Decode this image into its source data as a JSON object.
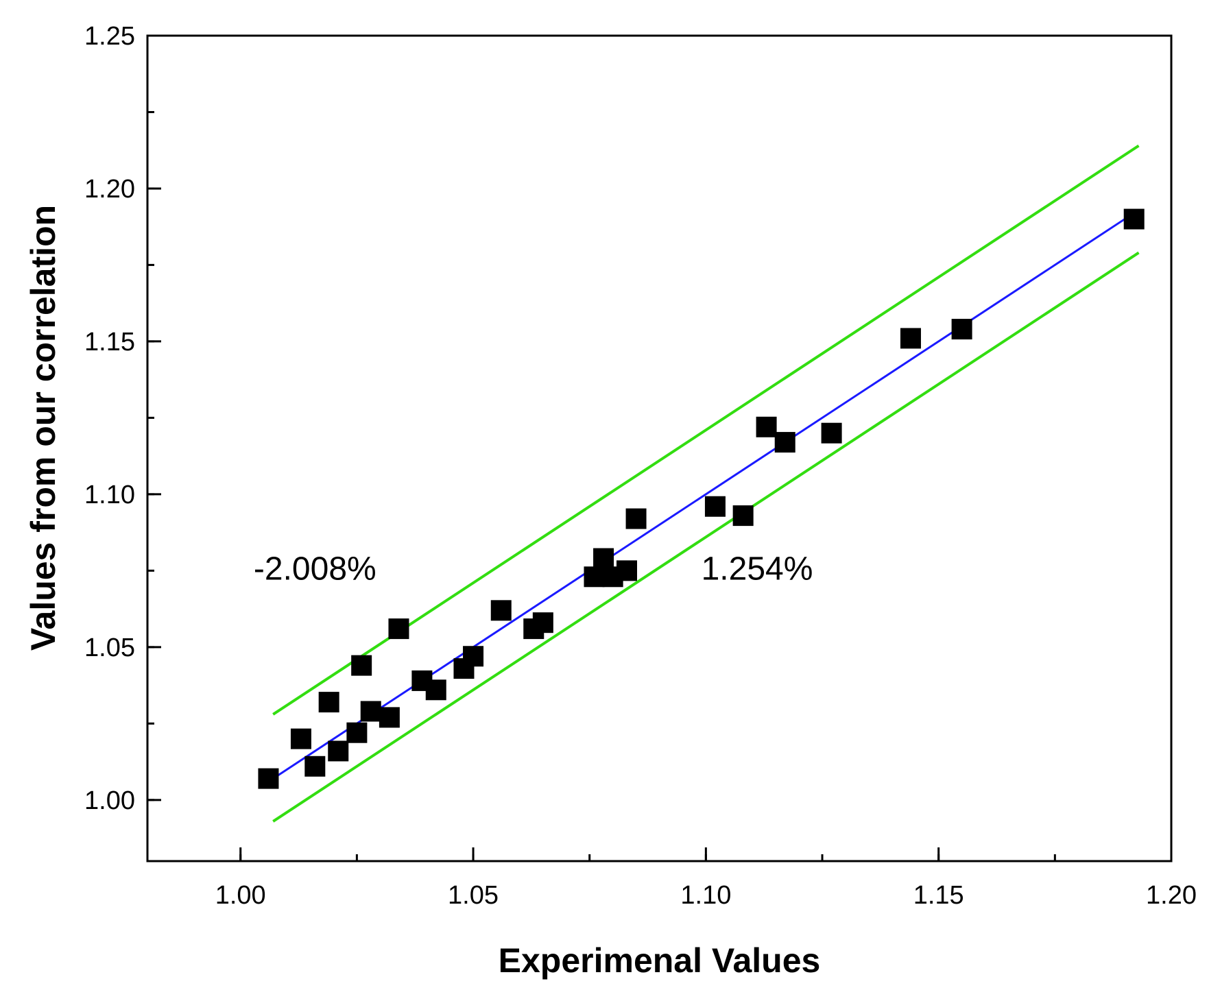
{
  "chart_data": {
    "type": "scatter",
    "title": "",
    "xlabel": "Experimenal Values",
    "ylabel": "Values from our correlation",
    "xlim": [
      0.98,
      1.2
    ],
    "ylim": [
      0.98,
      1.25
    ],
    "xticks": [
      1.0,
      1.05,
      1.1,
      1.15,
      1.2
    ],
    "xtick_labels": [
      "1.00",
      "1.05",
      "1.10",
      "1.15",
      "1.20"
    ],
    "yticks": [
      1.0,
      1.05,
      1.1,
      1.15,
      1.2,
      1.25
    ],
    "ytick_labels": [
      "1.00",
      "1.05",
      "1.10",
      "1.15",
      "1.20",
      "1.25"
    ],
    "x_minor_step": 0.025,
    "y_minor_step": 0.025,
    "grid": false,
    "series": [
      {
        "name": "data",
        "marker": "square",
        "color": "#000000",
        "points": [
          [
            1.006,
            1.007
          ],
          [
            1.013,
            1.02
          ],
          [
            1.016,
            1.011
          ],
          [
            1.019,
            1.032
          ],
          [
            1.021,
            1.016
          ],
          [
            1.025,
            1.022
          ],
          [
            1.026,
            1.044
          ],
          [
            1.028,
            1.029
          ],
          [
            1.032,
            1.027
          ],
          [
            1.034,
            1.056
          ],
          [
            1.039,
            1.039
          ],
          [
            1.042,
            1.036
          ],
          [
            1.048,
            1.043
          ],
          [
            1.05,
            1.047
          ],
          [
            1.056,
            1.062
          ],
          [
            1.063,
            1.056
          ],
          [
            1.065,
            1.058
          ],
          [
            1.076,
            1.073
          ],
          [
            1.078,
            1.079
          ],
          [
            1.08,
            1.073
          ],
          [
            1.083,
            1.075
          ],
          [
            1.085,
            1.092
          ],
          [
            1.102,
            1.096
          ],
          [
            1.108,
            1.093
          ],
          [
            1.113,
            1.122
          ],
          [
            1.117,
            1.117
          ],
          [
            1.127,
            1.12
          ],
          [
            1.144,
            1.151
          ],
          [
            1.155,
            1.154
          ],
          [
            1.192,
            1.19
          ]
        ]
      }
    ],
    "lines": [
      {
        "name": "fit",
        "color": "#1a1aff",
        "x": [
          1.007,
          1.193
        ],
        "y": [
          1.007,
          1.193
        ]
      },
      {
        "name": "upper-bound",
        "color": "#33dd11",
        "x": [
          1.007,
          1.193
        ],
        "y": [
          1.028,
          1.214
        ]
      },
      {
        "name": "lower-bound",
        "color": "#33dd11",
        "x": [
          1.007,
          1.193
        ],
        "y": [
          0.993,
          1.179
        ]
      }
    ],
    "annotations": [
      {
        "text": "-2.008%",
        "x": 1.016,
        "y": 1.072
      },
      {
        "text": "1.254%",
        "x": 1.111,
        "y": 1.072
      }
    ]
  }
}
